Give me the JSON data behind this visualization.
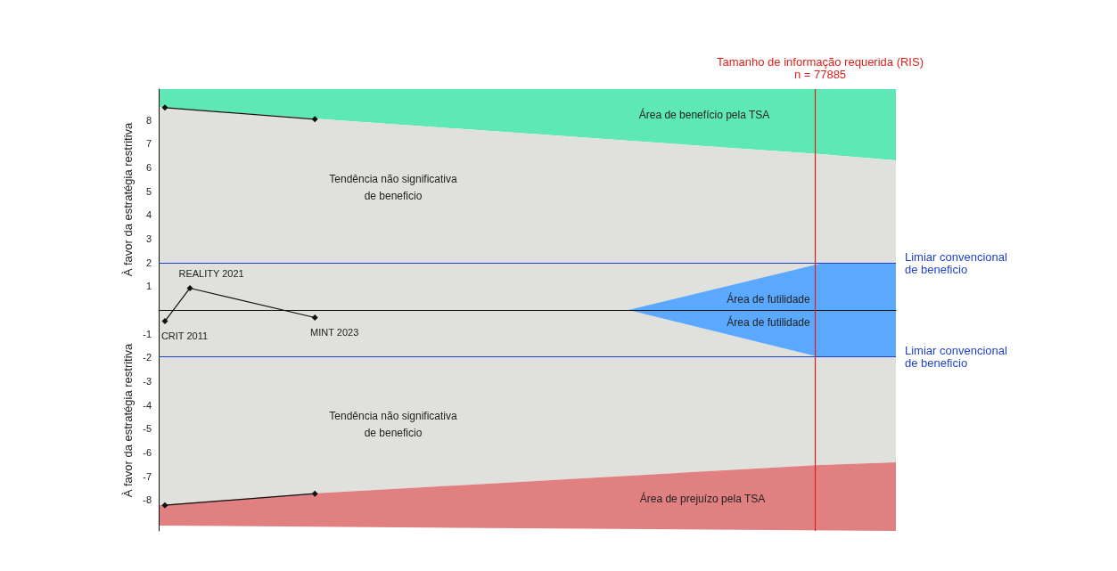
{
  "chart_data": {
    "type": "line",
    "ylabel": "À favor da estratégia restritiva",
    "categories": [
      null,
      null,
      null,
      null,
      null,
      null,
      null,
      null,
      null,
      null,
      null,
      null,
      null,
      null,
      null,
      null,
      null,
      null,
      null,
      null,
      null,
      null,
      null,
      null,
      null,
      null,
      null,
      null,
      null,
      null,
      null,
      null,
      null,
      null,
      null,
      null,
      null,
      null,
      null,
      null,
      null,
      null,
      null,
      null,
      null,
      null,
      null,
      null,
      null,
      null,
      null,
      null,
      null,
      null,
      null,
      null,
      null,
      null,
      null
    ],
    "ylim": [
      -9.3,
      9.3
    ],
    "yticks": [
      -8,
      -7,
      -6,
      -5,
      -4,
      -3,
      -2,
      -1,
      1,
      2,
      3,
      4,
      5,
      6,
      7,
      8
    ],
    "tick_labels": "y",
    "marker": "diamond",
    "series": [
      {
        "type": "line",
        "color": "#111111",
        "values": [
          8.52,
          null,
          null,
          null,
          null,
          null,
          null,
          null,
          null,
          null,
          null,
          null,
          8.03,
          null,
          null,
          null,
          null,
          null,
          null,
          null,
          null,
          null,
          null,
          null,
          null,
          null,
          null,
          null,
          null,
          null,
          null,
          null,
          null,
          null,
          null,
          null,
          null,
          null,
          null,
          null,
          null,
          null,
          null,
          null,
          null,
          null,
          null,
          null,
          null,
          null,
          null,
          null,
          null,
          null,
          null,
          null,
          null,
          null,
          null
        ]
      },
      {
        "type": "line",
        "color": "#111111",
        "values": [
          -8.22,
          null,
          null,
          null,
          null,
          null,
          null,
          null,
          null,
          null,
          null,
          null,
          -7.73,
          null,
          null,
          null,
          null,
          null,
          null,
          null,
          null,
          null,
          null,
          null,
          null,
          null,
          null,
          null,
          null,
          null,
          null,
          null,
          null,
          null,
          null,
          null,
          null,
          null,
          null,
          null,
          null,
          null,
          null,
          null,
          null,
          null,
          null,
          null,
          null,
          null,
          null,
          null,
          null,
          null,
          null,
          null,
          null,
          null,
          null
        ]
      },
      {
        "type": "line",
        "color": "#111111",
        "values": [
          -0.47,
          null,
          0.92,
          null,
          null,
          null,
          null,
          null,
          null,
          null,
          null,
          null,
          -0.32,
          null,
          null,
          null,
          null,
          null,
          null,
          null,
          null,
          null,
          null,
          null,
          null,
          null,
          null,
          null,
          null,
          null,
          null,
          null,
          null,
          null,
          null,
          null,
          null,
          null,
          null,
          null,
          null,
          null,
          null,
          null,
          null,
          null,
          null,
          null,
          null,
          null,
          null,
          null,
          null,
          null,
          null,
          null,
          null,
          null,
          null
        ],
        "value_labels": [
          "CRIT 2011",
          null,
          "REALITY 2021",
          null,
          null,
          null,
          null,
          null,
          null,
          null,
          null,
          null,
          "MINT 2023",
          null,
          null,
          null,
          null,
          null,
          null,
          null,
          null,
          null,
          null,
          null,
          null,
          null,
          null,
          null,
          null,
          null,
          null,
          null,
          null,
          null,
          null,
          null,
          null,
          null,
          null,
          null,
          null,
          null,
          null,
          null,
          null,
          null,
          null,
          null,
          null,
          null,
          null,
          null,
          null,
          null,
          null,
          null,
          null,
          null,
          null
        ]
      }
    ],
    "ref_lines": [
      {
        "axis": "y",
        "value": 1.96,
        "label": "Limiar convencional\nde beneficio",
        "color": "#1f3fd0"
      },
      {
        "axis": "y",
        "value": -1.96,
        "label": "Limiar convencional\nde beneficio",
        "color": "#1f3fd0"
      }
    ],
    "annotations": [
      "À favor da estratégia restritiva",
      "Área de benefício pela TSA",
      "Tendência não significativa\nde beneficio",
      "Tendência não significativa\nde beneficio",
      "Área de futilidade",
      "Área de futilidade",
      "Área de prejuízo pela TSA",
      "Tamanho de informação requerida (RIS)\nn = 77885"
    ]
  }
}
